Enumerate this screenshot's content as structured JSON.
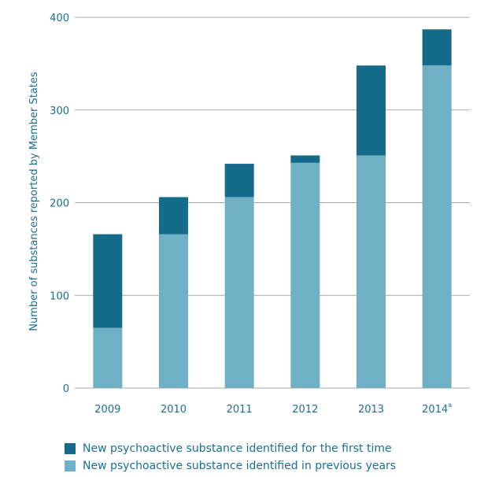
{
  "chart_data": {
    "type": "bar",
    "stacked": true,
    "categories": [
      "2009",
      "2010",
      "2011",
      "2012",
      "2013",
      "2014"
    ],
    "category_superscripts": [
      "",
      "",
      "",
      "",
      "",
      "a"
    ],
    "series": [
      {
        "name": "New psychoactive substance identified in previous years",
        "color": "#6fb0c5",
        "values": [
          65,
          166,
          206,
          243,
          251,
          348
        ]
      },
      {
        "name": "New psychoactive substance identified for the first time",
        "color": "#156b8a",
        "values": [
          101,
          40,
          36,
          8,
          97,
          39
        ]
      }
    ],
    "ylabel": "Number of substances reported by Member States",
    "ylim": [
      0,
      400
    ],
    "yticks": [
      0,
      100,
      200,
      300,
      400
    ],
    "grid": true,
    "legend_position": "bottom"
  },
  "legend": {
    "first_time": "New psychoactive substance identified for the first time",
    "previous_years": "New psychoactive substance identified in previous years"
  },
  "colors": {
    "dark": "#156b8a",
    "light": "#6fb0c5",
    "text": "#1a6f92",
    "grid": "#a7a9ac"
  }
}
